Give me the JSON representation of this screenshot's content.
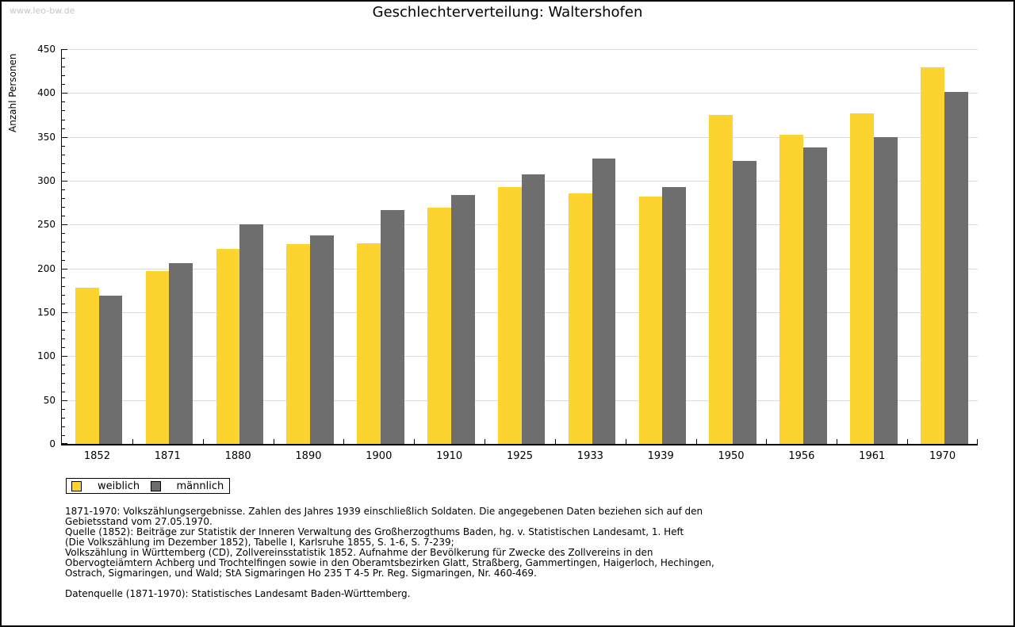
{
  "watermark": "www.leo-bw.de",
  "title": "Geschlechterverteilung: Waltershofen",
  "colors": {
    "female": "#FCD32F",
    "male": "#6E6E6E",
    "gridline": "#DCDCDC",
    "axis": "#000000",
    "watermark_text": "#C6C6C6"
  },
  "chart_data": {
    "type": "bar",
    "title": "Geschlechterverteilung: Waltershofen",
    "xlabel": "",
    "ylabel": "Anzahl Personen",
    "categories": [
      "1852",
      "1871",
      "1880",
      "1890",
      "1900",
      "1910",
      "1925",
      "1933",
      "1939",
      "1950",
      "1956",
      "1961",
      "1970"
    ],
    "series": [
      {
        "name": "weiblich",
        "color": "#FCD32F",
        "values": [
          178,
          197,
          222,
          228,
          229,
          269,
          293,
          286,
          282,
          375,
          352,
          377,
          429
        ]
      },
      {
        "name": "männlich",
        "color": "#6E6E6E",
        "values": [
          169,
          206,
          250,
          238,
          267,
          284,
          307,
          325,
          293,
          323,
          338,
          350,
          401
        ]
      }
    ],
    "ylim": [
      0,
      450
    ],
    "ytick_step": 50,
    "minor_tick_step": 10,
    "grid": "horizontal",
    "legend_position": "bottom-left"
  },
  "footnotes": {
    "lines": [
      "1871-1970: Volkszählungsergebnisse. Zahlen des Jahres 1939 einschließlich Soldaten. Die angegebenen Daten beziehen sich auf den",
      "Gebietsstand vom 27.05.1970.",
      "Quelle (1852): Beiträge zur Statistik der Inneren Verwaltung des Großherzogthums Baden, hg. v. Statistischen Landesamt, 1. Heft",
      "(Die Volkszählung im Dezember 1852), Tabelle I, Karlsruhe 1855, S. 1-6, S. 7-239;",
      "Volkszählung in Württemberg (CD), Zollvereinsstatistik 1852. Aufnahme der Bevölkerung für Zwecke des Zollvereins in den",
      "Obervogteiämtern Achberg und Trochtelfingen sowie in den Oberamtsbezirken Glatt, Straßberg, Gammertingen, Haigerloch, Hechingen,",
      "Ostrach, Sigmaringen, und Wald; StA Sigmaringen Ho 235 T 4-5 Pr. Reg. Sigmaringen, Nr. 460-469."
    ],
    "datasource": "Datenquelle (1871-1970): Statistisches Landesamt Baden-Württemberg."
  }
}
